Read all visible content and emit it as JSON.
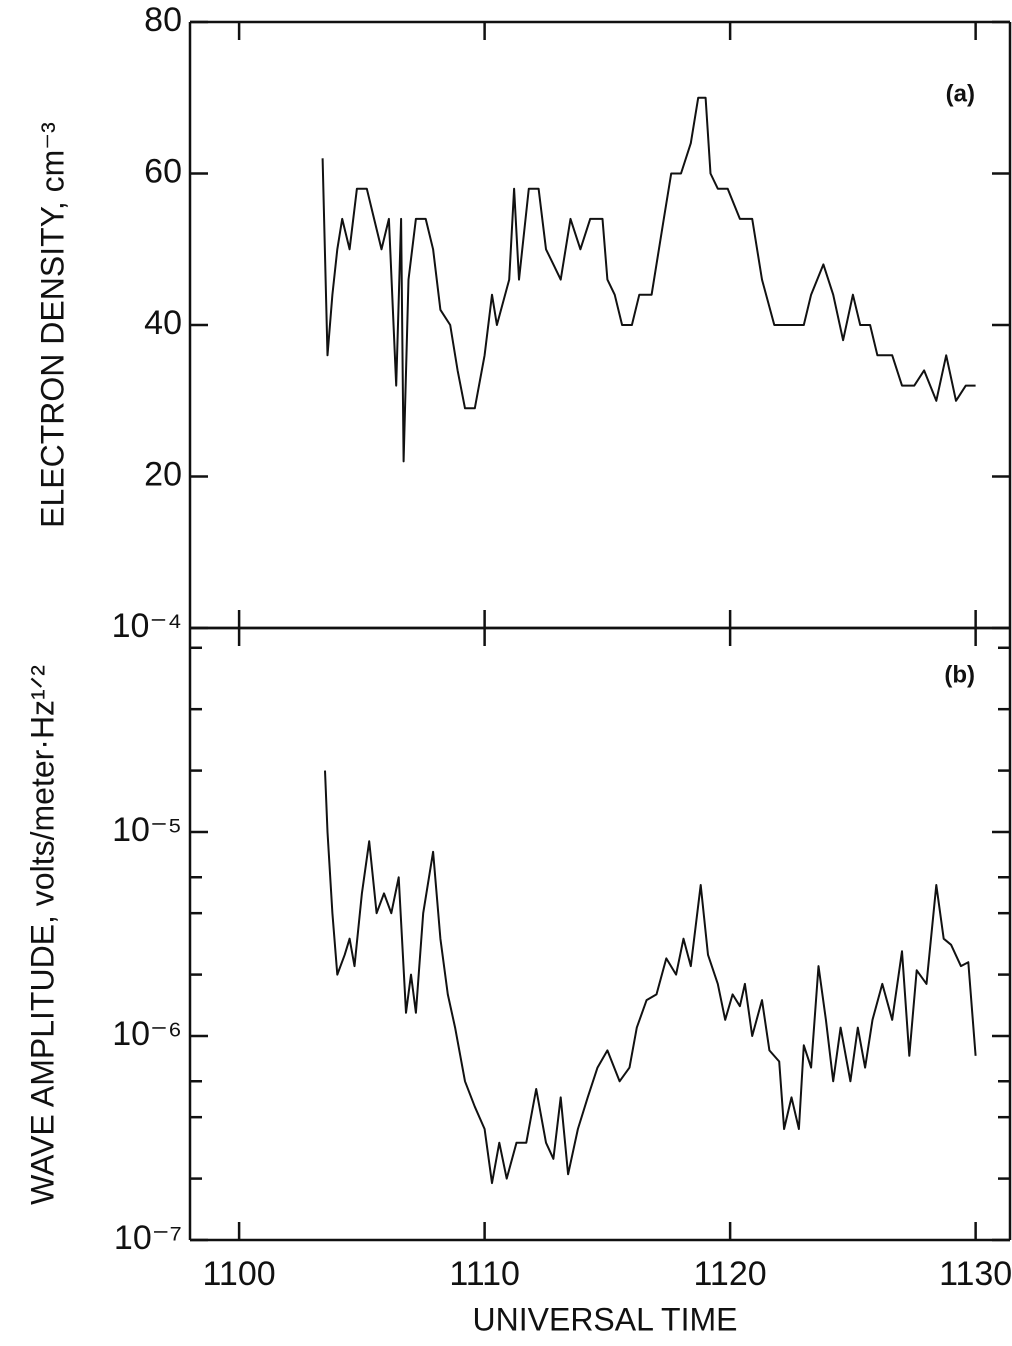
{
  "chart_data": [
    {
      "type": "line",
      "label": "(a)",
      "ylabel": "ELECTRON DENSITY, cm⁻³",
      "color": "#111111",
      "xlim": [
        1098,
        1131.4
      ],
      "xticks": [
        1100,
        1110,
        1120,
        1130
      ],
      "ylim": [
        0,
        80
      ],
      "yticks": [
        20,
        40,
        60,
        80
      ],
      "x": [
        1103.4,
        1103.6,
        1103.8,
        1104.0,
        1104.2,
        1104.5,
        1104.8,
        1105.2,
        1105.5,
        1105.8,
        1106.1,
        1106.4,
        1106.6,
        1106.7,
        1106.9,
        1107.2,
        1107.6,
        1107.9,
        1108.2,
        1108.6,
        1108.9,
        1109.2,
        1109.6,
        1110.0,
        1110.3,
        1110.5,
        1111.0,
        1111.2,
        1111.4,
        1111.8,
        1112.2,
        1112.5,
        1112.8,
        1113.1,
        1113.5,
        1113.9,
        1114.3,
        1114.8,
        1115.0,
        1115.3,
        1115.6,
        1116.0,
        1116.3,
        1116.8,
        1117.3,
        1117.6,
        1118.0,
        1118.4,
        1118.7,
        1119.0,
        1119.2,
        1119.5,
        1119.9,
        1120.4,
        1120.9,
        1121.3,
        1121.8,
        1122.4,
        1123.0,
        1123.3,
        1123.8,
        1124.2,
        1124.6,
        1125.0,
        1125.3,
        1125.7,
        1126.0,
        1126.6,
        1127.0,
        1127.5,
        1127.9,
        1128.4,
        1128.8,
        1129.2,
        1129.6,
        1130.0
      ],
      "values": [
        62,
        36,
        44,
        50,
        54,
        50,
        58,
        58,
        54,
        50,
        54,
        32,
        54,
        22,
        46,
        54,
        54,
        50,
        42,
        40,
        34,
        29,
        29,
        36,
        44,
        40,
        46,
        58,
        46,
        58,
        58,
        50,
        48,
        46,
        54,
        50,
        54,
        54,
        46,
        44,
        40,
        40,
        44,
        44,
        54,
        60,
        60,
        64,
        70,
        70,
        60,
        58,
        58,
        54,
        54,
        46,
        40,
        40,
        40,
        44,
        48,
        44,
        38,
        44,
        40,
        40,
        36,
        36,
        32,
        32,
        34,
        30,
        36,
        30,
        32,
        32
      ]
    },
    {
      "type": "line",
      "label": "(b)",
      "ylabel": "WAVE AMPLITUDE, volts/meter·Hz¹ᐟ²",
      "xlabel": "UNIVERSAL TIME",
      "color": "#111111",
      "yscale": "log",
      "xlim": [
        1098,
        1131.4
      ],
      "xticks": [
        1100,
        1110,
        1120,
        1130
      ],
      "ylim": [
        1e-07,
        0.0001
      ],
      "yticks": [
        {
          "value": 1e-07,
          "label": "10⁻⁷"
        },
        {
          "value": 1e-06,
          "label": "10⁻⁶"
        },
        {
          "value": 1e-05,
          "label": "10⁻⁵"
        },
        {
          "value": 0.0001,
          "label": "10⁻⁴"
        }
      ],
      "minor_yticks": [
        2e-07,
        4e-07,
        6e-07,
        2e-06,
        4e-06,
        6e-06,
        2e-05,
        4e-05,
        8e-05
      ],
      "x": [
        1103.5,
        1103.6,
        1103.8,
        1104.0,
        1104.3,
        1104.5,
        1104.7,
        1105.0,
        1105.3,
        1105.6,
        1105.9,
        1106.2,
        1106.5,
        1106.8,
        1107.0,
        1107.2,
        1107.5,
        1107.9,
        1108.2,
        1108.5,
        1108.8,
        1109.2,
        1109.6,
        1110.0,
        1110.3,
        1110.6,
        1110.9,
        1111.3,
        1111.7,
        1112.1,
        1112.5,
        1112.8,
        1113.1,
        1113.4,
        1113.8,
        1114.2,
        1114.6,
        1115.0,
        1115.5,
        1115.9,
        1116.2,
        1116.6,
        1117.0,
        1117.4,
        1117.8,
        1118.1,
        1118.4,
        1118.8,
        1119.1,
        1119.5,
        1119.8,
        1120.1,
        1120.4,
        1120.6,
        1120.9,
        1121.3,
        1121.6,
        1122.0,
        1122.2,
        1122.5,
        1122.8,
        1123.0,
        1123.3,
        1123.6,
        1123.9,
        1124.2,
        1124.5,
        1124.9,
        1125.2,
        1125.5,
        1125.8,
        1126.2,
        1126.6,
        1127.0,
        1127.3,
        1127.6,
        1128.0,
        1128.4,
        1128.7,
        1129.0,
        1129.4,
        1129.7,
        1130.0
      ],
      "values": [
        2e-05,
        1e-05,
        4e-06,
        2e-06,
        2.5e-06,
        3e-06,
        2.2e-06,
        5e-06,
        9e-06,
        4e-06,
        5e-06,
        4e-06,
        6e-06,
        1.3e-06,
        2e-06,
        1.3e-06,
        4e-06,
        8e-06,
        3e-06,
        1.6e-06,
        1.1e-06,
        6e-07,
        4.5e-07,
        3.5e-07,
        1.9e-07,
        3e-07,
        2e-07,
        3e-07,
        3e-07,
        5.5e-07,
        3e-07,
        2.5e-07,
        5e-07,
        2.1e-07,
        3.5e-07,
        5e-07,
        7e-07,
        8.5e-07,
        6e-07,
        7e-07,
        1.1e-06,
        1.5e-06,
        1.6e-06,
        2.4e-06,
        2e-06,
        3e-06,
        2.2e-06,
        5.5e-06,
        2.5e-06,
        1.8e-06,
        1.2e-06,
        1.6e-06,
        1.4e-06,
        1.8e-06,
        1e-06,
        1.5e-06,
        8.5e-07,
        7.5e-07,
        3.5e-07,
        5e-07,
        3.5e-07,
        9e-07,
        7e-07,
        2.2e-06,
        1.2e-06,
        6e-07,
        1.1e-06,
        6e-07,
        1.1e-06,
        7e-07,
        1.2e-06,
        1.8e-06,
        1.2e-06,
        2.6e-06,
        8e-07,
        2.1e-06,
        1.8e-06,
        5.5e-06,
        3e-06,
        2.8e-06,
        2.2e-06,
        2.3e-06,
        8e-07
      ]
    }
  ]
}
